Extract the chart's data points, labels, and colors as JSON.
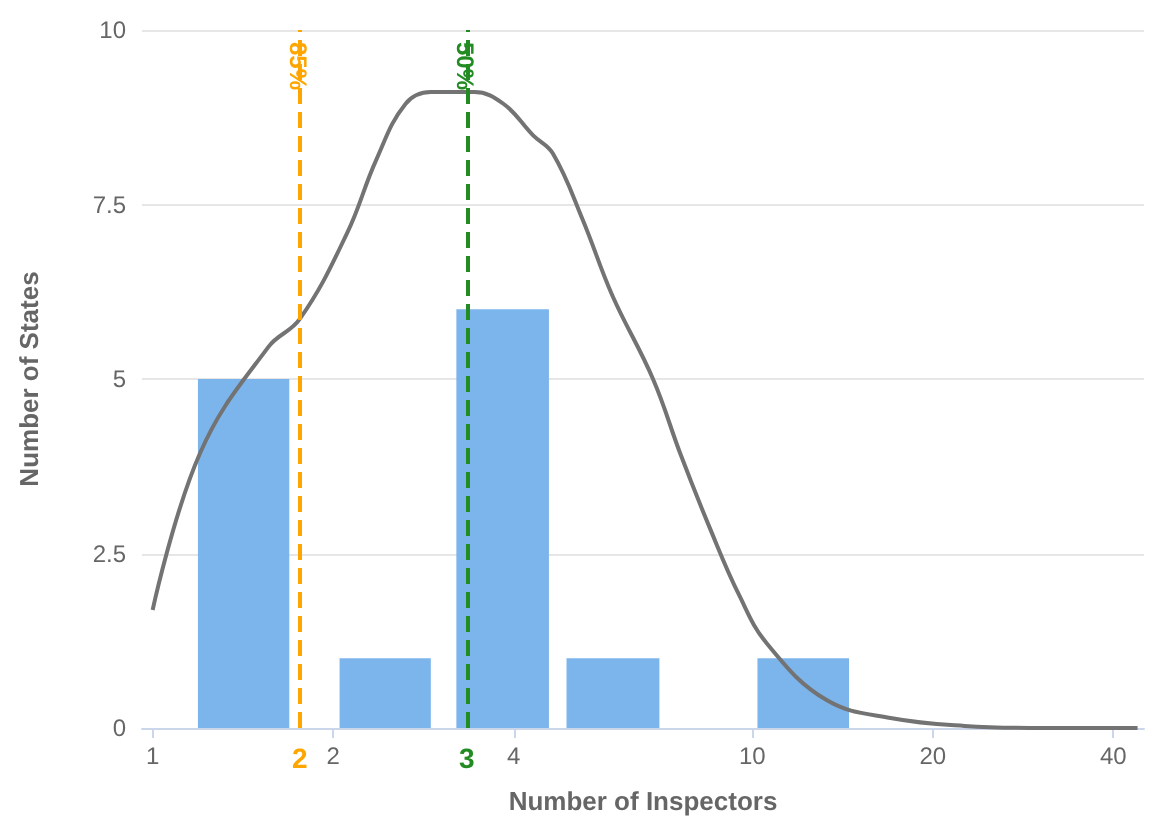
{
  "chart_data": {
    "type": "histogram",
    "xlabel": "Number of Inspectors",
    "ylabel": "Number of States",
    "bins": [
      1.19,
      1.69,
      2.05,
      2.91,
      3.21,
      4.58,
      4.9,
      7.0,
      10.2,
      14.5
    ],
    "values": [
      5,
      0,
      1,
      0,
      6,
      0,
      1,
      0,
      1
    ],
    "color": "#7cb5ec",
    "series": [
      {
        "type": "line",
        "color": "#737373",
        "x": [
          1.0,
          1.2,
          1.56,
          1.76,
          2.11,
          2.36,
          2.64,
          2.91,
          3.44,
          3.85,
          4.31,
          4.65,
          5.21,
          5.84,
          6.83,
          7.6,
          8.5,
          9.5,
          10.6,
          13.3,
          17.1,
          22.6,
          30.5,
          43.9
        ],
        "values": [
          1.69,
          3.94,
          5.46,
          5.86,
          7.09,
          8.14,
          8.94,
          9.11,
          9.11,
          8.94,
          8.49,
          8.23,
          7.29,
          6.2,
          5.0,
          3.91,
          2.86,
          1.91,
          1.2,
          0.4,
          0.14,
          0.03,
          0,
          0
        ]
      }
    ],
    "xlim": [
      0.96,
      45
    ],
    "xticks": [
      1,
      2,
      4,
      10,
      20,
      40
    ],
    "log": "x",
    "ylim": [
      0,
      10
    ],
    "yticks": [
      0,
      2.5,
      5,
      7.5,
      10
    ],
    "grid": "y",
    "marker": "none",
    "ref_lines": [
      {
        "axis": "x",
        "value": 1.76,
        "color": "#ffa500",
        "line_style": "dashed"
      },
      {
        "axis": "x",
        "value": 3.34,
        "color": "#228b22",
        "line_style": "dashed"
      }
    ],
    "annotations": [
      "85%",
      "50%",
      "2",
      "3"
    ]
  }
}
